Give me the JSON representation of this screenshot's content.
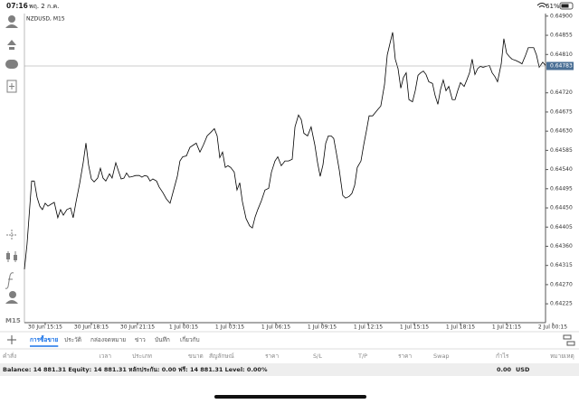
{
  "status_bar": {
    "time": "07:16",
    "date": "พฤ. 2 ก.ค.",
    "battery": "61%"
  },
  "toolbar": {
    "timeframe": "M15"
  },
  "chart_data": {
    "type": "line",
    "title": "NZDUSD, M15",
    "color": "#000000",
    "grid": false,
    "x": [
      -1.35,
      -1.18,
      -0.88,
      -0.71,
      -0.53,
      -0.35,
      -0.18,
      0,
      0.18,
      0.35,
      0.59,
      0.82,
      1.0,
      1.18,
      1.41,
      1.65,
      1.82,
      2.0,
      2.24,
      2.47,
      2.65,
      2.82,
      3.0,
      3.18,
      3.41,
      3.59,
      3.76,
      3.94,
      4.18,
      4.35,
      4.59,
      4.76,
      4.94,
      5.12,
      5.29,
      5.47,
      5.71,
      5.88,
      6.12,
      6.29,
      6.47,
      6.65,
      6.82,
      7.0,
      7.24,
      7.41,
      7.65,
      7.88,
      8.12,
      8.35,
      8.59,
      8.76,
      8.94,
      9.18,
      9.41,
      9.65,
      9.82,
      10.06,
      10.29,
      10.53,
      10.76,
      11.0,
      11.18,
      11.35,
      11.53,
      11.71,
      11.88,
      12.06,
      12.29,
      12.47,
      12.65,
      12.82,
      13.06,
      13.29,
      13.47,
      13.65,
      13.82,
      14.06,
      14.29,
      14.53,
      14.71,
      14.94,
      15.12,
      15.35,
      15.59,
      15.82,
      16.06,
      16.24,
      16.47,
      16.65,
      16.82,
      17.06,
      17.29,
      17.53,
      17.71,
      17.88,
      18.06,
      18.24,
      18.41,
      18.59,
      18.76,
      18.94,
      19.12,
      19.35,
      19.53,
      19.76,
      19.94,
      20.12,
      20.29,
      20.53,
      20.71,
      20.88,
      21.06,
      21.29,
      21.47,
      21.65,
      21.82,
      22.06,
      22.24,
      22.41,
      22.59,
      22.76,
      22.94,
      23.12,
      23.29,
      23.47,
      23.65,
      23.88,
      24.06,
      24.24,
      24.41,
      24.59,
      24.76,
      24.94,
      25.18,
      25.35,
      25.53,
      25.71,
      25.88,
      26.06,
      26.24,
      26.47,
      26.65,
      26.82,
      27.0,
      27.24,
      27.41,
      27.59,
      27.76,
      27.94,
      28.12,
      28.29,
      28.47,
      28.65,
      28.88,
      29.06,
      29.24,
      29.41,
      29.65,
      29.82,
      30.0,
      30.18,
      30.35,
      30.59,
      30.82,
      31.0,
      31.24,
      31.41,
      31.59,
      31.76,
      31.94,
      32.12,
      32.35,
      32.53
    ],
    "values": [
      0.64306,
      0.64365,
      0.64513,
      0.64513,
      0.64475,
      0.64454,
      0.64446,
      0.64461,
      0.64454,
      0.64458,
      0.64463,
      0.64427,
      0.64446,
      0.64433,
      0.64446,
      0.6445,
      0.64427,
      0.64463,
      0.64507,
      0.64556,
      0.64602,
      0.64551,
      0.64518,
      0.64511,
      0.6452,
      0.64543,
      0.6452,
      0.64513,
      0.6453,
      0.6452,
      0.64556,
      0.64537,
      0.64518,
      0.6452,
      0.64532,
      0.64522,
      0.64524,
      0.64526,
      0.64526,
      0.64522,
      0.64526,
      0.64524,
      0.64513,
      0.64518,
      0.64513,
      0.64499,
      0.64486,
      0.64471,
      0.64461,
      0.64492,
      0.64524,
      0.6456,
      0.6457,
      0.64572,
      0.64592,
      0.64598,
      0.64602,
      0.64581,
      0.64598,
      0.64619,
      0.64627,
      0.64636,
      0.64619,
      0.64568,
      0.64581,
      0.64545,
      0.64549,
      0.64545,
      0.64534,
      0.64492,
      0.64509,
      0.64465,
      0.64425,
      0.64408,
      0.64403,
      0.64429,
      0.64446,
      0.64467,
      0.64492,
      0.64496,
      0.64534,
      0.6456,
      0.6457,
      0.64549,
      0.6456,
      0.6456,
      0.64564,
      0.6464,
      0.64668,
      0.64657,
      0.64625,
      0.64619,
      0.6464,
      0.64598,
      0.64556,
      0.64524,
      0.64551,
      0.64602,
      0.64619,
      0.64619,
      0.64613,
      0.64577,
      0.64539,
      0.64479,
      0.64473,
      0.64477,
      0.64484,
      0.64503,
      0.64545,
      0.6456,
      0.64598,
      0.6463,
      0.64666,
      0.64666,
      0.64674,
      0.64682,
      0.64689,
      0.64739,
      0.64809,
      0.64835,
      0.64862,
      0.64799,
      0.64777,
      0.64731,
      0.64756,
      0.64767,
      0.64704,
      0.64699,
      0.64725,
      0.64761,
      0.64767,
      0.64771,
      0.64763,
      0.64746,
      0.64742,
      0.64714,
      0.64693,
      0.64729,
      0.6475,
      0.64725,
      0.64735,
      0.64704,
      0.64704,
      0.64725,
      0.64744,
      0.64735,
      0.6475,
      0.64767,
      0.64799,
      0.64763,
      0.64777,
      0.64782,
      0.6478,
      0.64782,
      0.64784,
      0.64767,
      0.64758,
      0.64746,
      0.64788,
      0.64847,
      0.64813,
      0.64805,
      0.64799,
      0.64796,
      0.64792,
      0.64788,
      0.64809,
      0.64826,
      0.64826,
      0.64826,
      0.64809,
      0.6478,
      0.64792,
      0.64784
    ],
    "xlim": [
      -1.35,
      32.53
    ],
    "xticks": [
      {
        "value": 0,
        "label": "30 Jun 15:15"
      },
      {
        "value": 3,
        "label": "30 Jun 18:15"
      },
      {
        "value": 6,
        "label": "30 Jun 21:15"
      },
      {
        "value": 9,
        "label": "1 Jul 00:15"
      },
      {
        "value": 12,
        "label": "1 Jul 03:15"
      },
      {
        "value": 15,
        "label": "1 Jul 06:15"
      },
      {
        "value": 18,
        "label": "1 Jul 09:15"
      },
      {
        "value": 21,
        "label": "1 Jul 12:15"
      },
      {
        "value": 24,
        "label": "1 Jul 15:15"
      },
      {
        "value": 27,
        "label": "1 Jul 18:15"
      },
      {
        "value": 30,
        "label": "1 Jul 21:15"
      },
      {
        "value": 33,
        "label": "2 Jul 00:15"
      }
    ],
    "ylim": [
      0.64185,
      0.64906
    ],
    "yticks": [
      {
        "value": 0.649,
        "label": "0.64900"
      },
      0.64855,
      {
        "value": 0.6481,
        "label": "0.64810"
      },
      {
        "value": 0.6472,
        "label": "0.64720"
      },
      0.64675,
      {
        "value": 0.6463,
        "label": "0.64630"
      },
      0.64585,
      {
        "value": 0.6454,
        "label": "0.64540"
      },
      0.64495,
      {
        "value": 0.6445,
        "label": "0.64450"
      },
      0.64405,
      {
        "value": 0.6436,
        "label": "0.64360"
      },
      0.64315,
      {
        "value": 0.6427,
        "label": "0.64270"
      },
      0.64225
    ],
    "current_price": 0.64783
  },
  "tabs": [
    "การซื้อขาย",
    "ประวัติ",
    "กล่องจดหมาย",
    "ข่าว",
    "บันทึก",
    "เกี่ยวกับ"
  ],
  "active_tab": 0,
  "table": {
    "columns": [
      "คำสั่ง",
      "เวลา",
      "ประเภท",
      "ขนาด",
      "สัญลักษณ์",
      "ราคา",
      "S/L",
      "T/P",
      "ราคา",
      "Swap",
      "กำไร",
      "หมายเหตุ"
    ]
  },
  "account": {
    "summary": "Balance: 14 881.31 Equity: 14 881.31 หลักประกัน: 0.00 ฟรี: 14 881.31 Level: 0.00%",
    "profit": "0.00",
    "currency": "USD"
  }
}
